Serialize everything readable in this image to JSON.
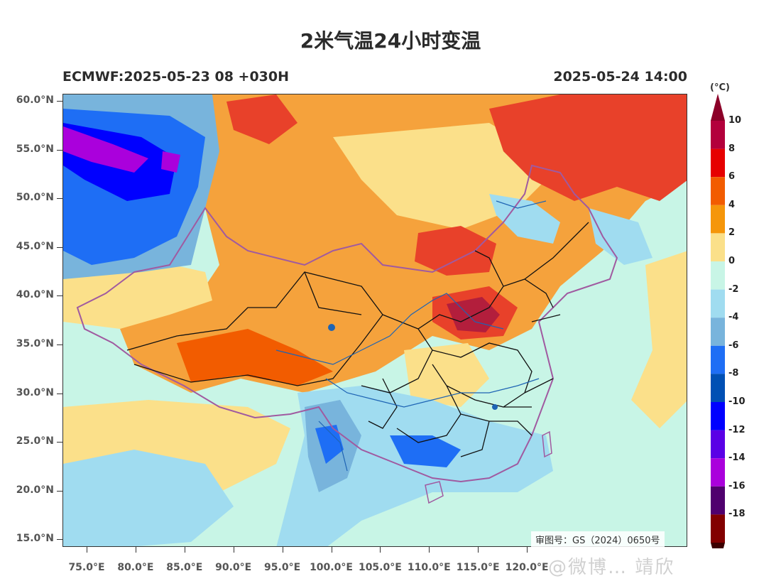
{
  "title": "2米气温24小时变温",
  "model_run": "ECMWF:2025-05-23 08 +030H",
  "valid_time": "2025-05-24 14:00",
  "approval_number": "审图号：GS（2024）0650号",
  "watermark": "@微博…  靖欣",
  "lat_ticks": [
    "60.0°N",
    "55.0°N",
    "50.0°N",
    "45.0°N",
    "40.0°N",
    "35.0°N",
    "30.0°N",
    "25.0°N",
    "20.0°N",
    "15.0°N"
  ],
  "lon_ticks": [
    "75.0°E",
    "80.0°E",
    "85.0°E",
    "90.0°E",
    "95.0°E",
    "100.0°E",
    "105.0°E",
    "110.0°E",
    "115.0°E",
    "120.0°E"
  ],
  "colorbar": {
    "unit": "(°C)",
    "labels": [
      "10",
      "8",
      "6",
      "4",
      "2",
      "0",
      "-2",
      "-4",
      "-6",
      "-8",
      "-10",
      "-12",
      "-14",
      "-16",
      "-18"
    ],
    "colors": [
      "#b3003c",
      "#e60000",
      "#f25c00",
      "#f5960a",
      "#fbe08a",
      "#c8f5e6",
      "#a0dcf0",
      "#78b4dc",
      "#1e6ef5",
      "#0050b4",
      "#0000ff",
      "#5a00e6",
      "#aa00dc",
      "#50006e",
      "#820000"
    ],
    "top_color": "#8c0028",
    "bottom_color": "#3c0000"
  },
  "map_colors": {
    "ocean": "#c8f5e6",
    "coast": "#a05aa0",
    "provinces": "#111111",
    "rivers": "#1e64b4"
  }
}
